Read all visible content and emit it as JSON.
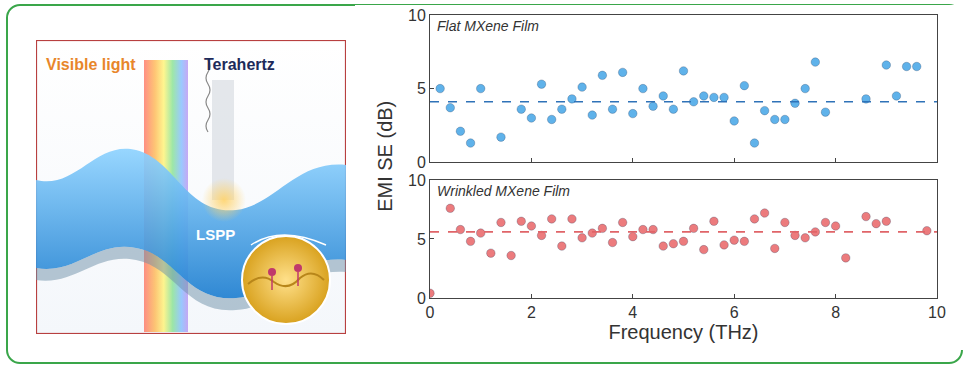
{
  "illustration": {
    "labels": [
      "Visible light",
      "Terahertz",
      "LSPP"
    ]
  },
  "y_label": "EMI SE (dB)",
  "chart_data": [
    {
      "type": "scatter",
      "title": "Flat MXene Film",
      "xlim": [
        0,
        10
      ],
      "xticks": [
        0,
        2,
        4,
        6,
        8,
        10
      ],
      "ylim": [
        0,
        10
      ],
      "yticks": [
        0,
        5,
        10
      ],
      "tick_labels": "y",
      "grid": false,
      "series": [
        {
          "type": "scatter",
          "marker": "circle",
          "color": "#5fb2ea",
          "x": [
            0.2,
            0.4,
            0.6,
            0.8,
            1.0,
            1.4,
            1.8,
            2.0,
            2.2,
            2.4,
            2.6,
            2.8,
            3.0,
            3.2,
            3.4,
            3.6,
            3.8,
            4.0,
            4.2,
            4.4,
            4.6,
            4.8,
            5.0,
            5.2,
            5.4,
            5.6,
            5.8,
            6.0,
            6.2,
            6.4,
            6.6,
            6.8,
            7.0,
            7.2,
            7.4,
            7.6,
            7.8,
            8.6,
            9.0,
            9.2,
            9.4,
            9.6
          ],
          "values": [
            5.0,
            3.7,
            2.1,
            1.3,
            5.0,
            1.7,
            3.6,
            3.0,
            5.3,
            2.9,
            3.6,
            4.3,
            5.1,
            3.2,
            5.9,
            3.6,
            6.1,
            3.3,
            5.0,
            3.8,
            4.5,
            3.6,
            6.2,
            4.1,
            4.5,
            4.4,
            4.4,
            2.8,
            5.2,
            1.3,
            3.5,
            2.9,
            2.9,
            4.0,
            5.0,
            6.8,
            3.4,
            4.3,
            6.6,
            4.5,
            6.5,
            6.5
          ]
        },
        {
          "type": "line",
          "line_style": "dashed",
          "color": "#2f72b8",
          "x": [
            0,
            10
          ],
          "values": [
            4.1,
            4.1
          ]
        }
      ]
    },
    {
      "type": "scatter",
      "title": "Wrinkled MXene Film",
      "x_label": "Frequency (THz)",
      "xlim": [
        0,
        10
      ],
      "xticks": [
        0,
        2,
        4,
        6,
        8,
        10
      ],
      "ylim": [
        0,
        10
      ],
      "yticks": [
        0,
        5,
        10
      ],
      "grid": false,
      "series": [
        {
          "type": "scatter",
          "marker": "circle",
          "color": "#ec7b7d",
          "x": [
            0.0,
            0.4,
            0.6,
            0.8,
            1.0,
            1.2,
            1.4,
            1.6,
            1.8,
            2.0,
            2.2,
            2.4,
            2.6,
            2.8,
            3.0,
            3.2,
            3.4,
            3.6,
            3.8,
            4.0,
            4.2,
            4.4,
            4.6,
            4.8,
            5.0,
            5.2,
            5.4,
            5.6,
            5.8,
            6.0,
            6.2,
            6.4,
            6.6,
            6.8,
            7.0,
            7.2,
            7.4,
            7.6,
            7.8,
            8.0,
            8.2,
            8.6,
            8.8,
            9.0,
            9.8
          ],
          "values": [
            0.4,
            7.6,
            5.8,
            4.8,
            5.5,
            3.8,
            6.4,
            3.6,
            6.5,
            6.1,
            5.3,
            6.7,
            4.4,
            6.7,
            5.1,
            5.5,
            5.9,
            4.7,
            6.4,
            5.2,
            5.8,
            5.8,
            4.4,
            4.6,
            4.8,
            5.9,
            4.1,
            6.5,
            4.5,
            4.9,
            4.8,
            6.7,
            7.2,
            4.2,
            6.4,
            5.3,
            5.1,
            5.6,
            6.4,
            6.1,
            3.4,
            6.9,
            6.3,
            6.5,
            5.7
          ]
        },
        {
          "type": "line",
          "line_style": "dashed",
          "color": "#e06468",
          "x": [
            0,
            10
          ],
          "values": [
            5.6,
            5.6
          ]
        }
      ]
    }
  ]
}
